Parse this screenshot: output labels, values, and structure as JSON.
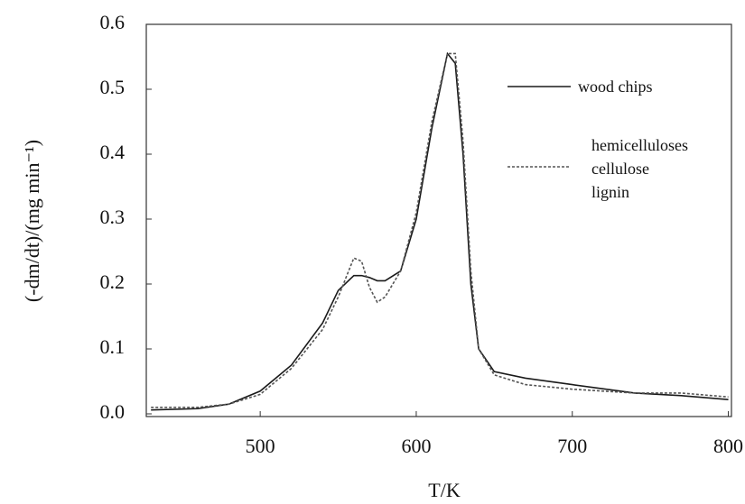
{
  "chart_data": {
    "type": "line",
    "xlabel": "T/K",
    "ylabel": "(-dm/dt)/(mg min⁻¹)",
    "x": [
      430,
      460,
      480,
      500,
      520,
      540,
      550,
      560,
      565,
      570,
      575,
      580,
      590,
      600,
      610,
      620,
      625,
      630,
      635,
      640,
      650,
      670,
      700,
      740,
      770,
      800
    ],
    "series": [
      {
        "name": "wood chips",
        "color": "#1a1a1a",
        "line_style": "solid",
        "values": [
          0.006,
          0.008,
          0.015,
          0.035,
          0.075,
          0.14,
          0.19,
          0.213,
          0.213,
          0.21,
          0.205,
          0.205,
          0.22,
          0.3,
          0.44,
          0.555,
          0.54,
          0.4,
          0.2,
          0.1,
          0.065,
          0.055,
          0.045,
          0.032,
          0.028,
          0.022
        ]
      },
      {
        "name": "hemicelluloses cellulose lignin",
        "color": "#555555",
        "line_style": "dotted",
        "values": [
          0.01,
          0.01,
          0.015,
          0.03,
          0.07,
          0.13,
          0.18,
          0.24,
          0.235,
          0.195,
          0.172,
          0.18,
          0.22,
          0.31,
          0.45,
          0.555,
          0.555,
          0.42,
          0.22,
          0.1,
          0.06,
          0.045,
          0.038,
          0.032,
          0.032,
          0.026
        ]
      }
    ],
    "xlim": [
      427,
      802
    ],
    "ylim": [
      0,
      0.6
    ],
    "xticks": [
      500,
      600,
      700,
      800
    ],
    "yticks": [
      {
        "value": 0,
        "label": "0.0"
      },
      0.1,
      0.2,
      0.3,
      0.4,
      0.5,
      0.6
    ]
  }
}
